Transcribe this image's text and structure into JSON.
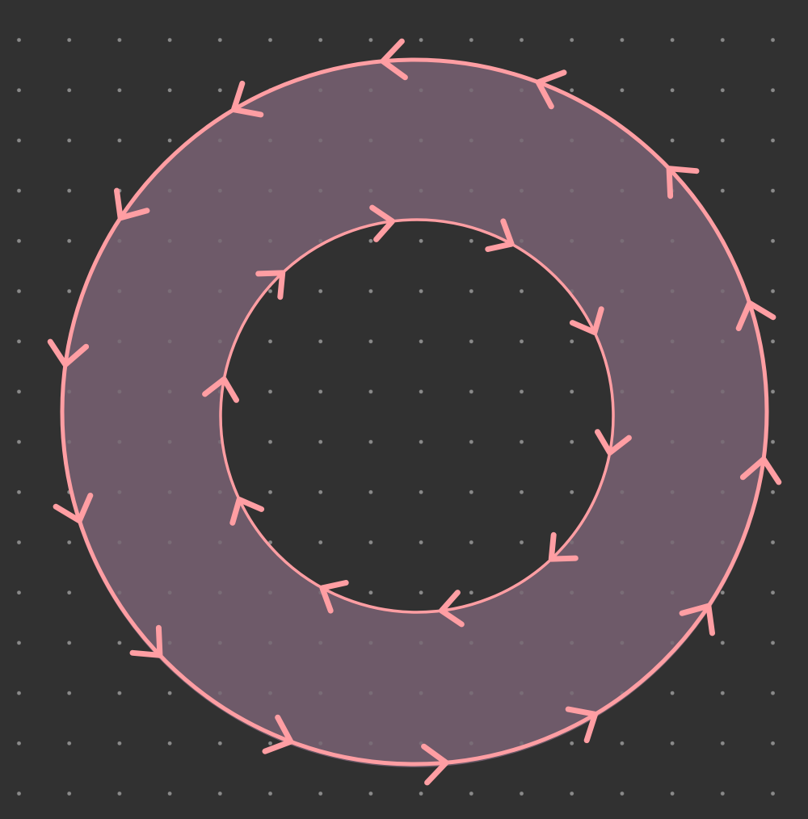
{
  "colors": {
    "background": "#313131",
    "grid_dot": "#8a8a8a",
    "region_fill": "#715c6b",
    "boundary_stroke": "#ff9ea3"
  },
  "diagram": {
    "shape": "annulus",
    "outer_boundary": {
      "orientation": "counterclockwise",
      "arrow_count": 14
    },
    "inner_boundary": {
      "orientation": "clockwise",
      "arrow_count": 10
    }
  }
}
